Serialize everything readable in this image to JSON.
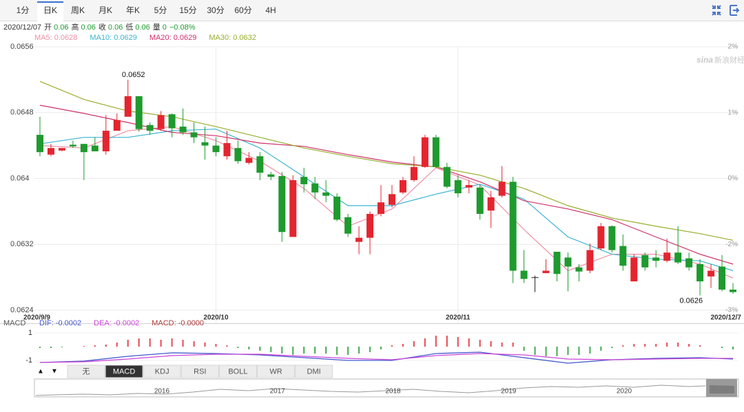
{
  "toolbar": {
    "tabs": [
      "1分",
      "日K",
      "周K",
      "月K",
      "年K",
      "5分",
      "15分",
      "30分",
      "60分",
      "4H"
    ],
    "active_tab": 1
  },
  "info": {
    "date": "2020/12/07",
    "fields": [
      {
        "label": "开",
        "value": "0.06"
      },
      {
        "label": "高",
        "value": "0.06"
      },
      {
        "label": "收",
        "value": "0.06"
      },
      {
        "label": "低",
        "value": "0.06"
      },
      {
        "label": "量",
        "value": "0"
      }
    ],
    "change": "−0.08%"
  },
  "watermark": {
    "logo": "sina",
    "text": "新浪财经"
  },
  "chart_data": [
    {
      "type": "candlestick",
      "categories": [
        "2020/9/9",
        null,
        null,
        null,
        null,
        null,
        null,
        null,
        null,
        null,
        null,
        null,
        null,
        null,
        null,
        null,
        "2020/10",
        null,
        null,
        null,
        null,
        null,
        null,
        null,
        null,
        null,
        null,
        null,
        null,
        null,
        null,
        null,
        null,
        null,
        null,
        null,
        null,
        null,
        "2020/11",
        null,
        null,
        null,
        null,
        null,
        null,
        null,
        null,
        null,
        null,
        null,
        null,
        null,
        null,
        null,
        null,
        null,
        null,
        null,
        null,
        null,
        null,
        null,
        null,
        "2020/12/7"
      ],
      "open": [
        0.06453,
        0.06429,
        0.06434,
        0.06441,
        0.06442,
        0.0644,
        0.06433,
        0.06458,
        0.06475,
        0.065,
        0.06465,
        0.0646,
        0.06478,
        0.06463,
        0.06456,
        0.06444,
        0.0644,
        0.06427,
        0.06437,
        0.06419,
        0.06427,
        0.06405,
        0.06403,
        0.06329,
        0.06402,
        0.06394,
        0.06383,
        0.06378,
        0.06353,
        0.06323,
        0.06328,
        0.06357,
        0.06368,
        0.06383,
        0.06398,
        0.06414,
        0.0645,
        0.06414,
        0.06398,
        0.06389,
        0.06389,
        0.06361,
        0.06379,
        0.06396,
        0.06288,
        0.0628,
        0.06285,
        0.06311,
        0.06304,
        0.06292,
        0.06288,
        0.06315,
        0.06342,
        0.06318,
        0.06275,
        0.06307,
        0.06304,
        0.063,
        0.0631,
        0.06303,
        0.06296,
        0.06281,
        0.06293,
        0.06265
      ],
      "high": [
        0.06475,
        0.06442,
        0.06437,
        0.06446,
        0.06442,
        0.0645,
        0.06477,
        0.06479,
        0.0652,
        0.065,
        0.06468,
        0.06482,
        0.06479,
        0.06485,
        0.06468,
        0.06463,
        0.0645,
        0.06458,
        0.06446,
        0.06432,
        0.06432,
        0.06408,
        0.06408,
        0.06404,
        0.06413,
        0.06402,
        0.06398,
        0.06382,
        0.06357,
        0.06342,
        0.0636,
        0.06392,
        0.06392,
        0.06402,
        0.06427,
        0.06453,
        0.06453,
        0.06419,
        0.06404,
        0.06398,
        0.06392,
        0.06385,
        0.06415,
        0.06402,
        0.06313,
        0.06282,
        0.06302,
        0.06311,
        0.0631,
        0.06296,
        0.06321,
        0.06346,
        0.06343,
        0.06332,
        0.06308,
        0.0631,
        0.06313,
        0.06327,
        0.06342,
        0.0631,
        0.06302,
        0.06296,
        0.06307,
        0.06273
      ],
      "low": [
        0.06427,
        0.06427,
        0.06433,
        0.06437,
        0.06398,
        0.06433,
        0.06429,
        0.06458,
        0.06475,
        0.06457,
        0.06453,
        0.06458,
        0.0645,
        0.06453,
        0.06443,
        0.06423,
        0.06427,
        0.06423,
        0.06418,
        0.06417,
        0.06398,
        0.06398,
        0.06323,
        0.06329,
        0.06383,
        0.06375,
        0.06371,
        0.06348,
        0.06329,
        0.06308,
        0.06308,
        0.06354,
        0.06365,
        0.06381,
        0.06396,
        0.06413,
        0.06413,
        0.06388,
        0.06377,
        0.06382,
        0.0635,
        0.0634,
        0.06377,
        0.06273,
        0.06273,
        0.06262,
        0.06285,
        0.06275,
        0.06263,
        0.06275,
        0.06285,
        0.06313,
        0.0631,
        0.06288,
        0.06275,
        0.06288,
        0.06292,
        0.06298,
        0.06296,
        0.06288,
        0.06258,
        0.06267,
        0.06263,
        0.0626
      ],
      "close": [
        0.06432,
        0.06437,
        0.06437,
        0.06439,
        0.06432,
        0.06433,
        0.06458,
        0.06471,
        0.065,
        0.0646,
        0.06458,
        0.06477,
        0.06461,
        0.06456,
        0.0645,
        0.0644,
        0.06432,
        0.06443,
        0.06421,
        0.06425,
        0.06407,
        0.06402,
        0.06335,
        0.06398,
        0.06393,
        0.06383,
        0.06379,
        0.0635,
        0.06333,
        0.06328,
        0.06357,
        0.06371,
        0.06381,
        0.06398,
        0.06414,
        0.0645,
        0.06414,
        0.0639,
        0.06382,
        0.06392,
        0.06357,
        0.06377,
        0.06396,
        0.06288,
        0.06278,
        0.0628,
        0.06288,
        0.06284,
        0.06293,
        0.06287,
        0.06313,
        0.06342,
        0.06313,
        0.06294,
        0.06304,
        0.06292,
        0.063,
        0.0631,
        0.06298,
        0.06292,
        0.06275,
        0.06288,
        0.06265,
        0.06262
      ],
      "up_color": "#e4252f",
      "down_color": "#1e9a2e",
      "flat_color": "#222222",
      "ma_x": [
        0,
        4,
        8,
        12,
        16,
        20,
        24,
        28,
        32,
        36,
        40,
        44,
        48,
        52,
        56,
        60,
        63
      ],
      "ma": [
        {
          "name": "MA5: 0.0628",
          "color": "#ef8fa4",
          "values": [
            0.0644,
            0.06437,
            0.06458,
            0.06463,
            0.06446,
            0.06421,
            0.06388,
            0.06342,
            0.06363,
            0.06413,
            0.06392,
            0.06338,
            0.06288,
            0.06308,
            0.06308,
            0.06296,
            0.06279
          ]
        },
        {
          "name": "MA10: 0.0629",
          "color": "#3bb3d3",
          "values": [
            0.06442,
            0.0645,
            0.0645,
            0.06458,
            0.0646,
            0.06437,
            0.06402,
            0.06367,
            0.06367,
            0.06381,
            0.06393,
            0.06375,
            0.06329,
            0.06308,
            0.06302,
            0.063,
            0.06288
          ]
        },
        {
          "name": "MA20: 0.0629",
          "color": "#cf2f68",
          "values": [
            0.06489,
            0.06479,
            0.06468,
            0.06456,
            0.06452,
            0.06443,
            0.06439,
            0.06429,
            0.0642,
            0.06414,
            0.06396,
            0.06373,
            0.06363,
            0.0635,
            0.06329,
            0.06308,
            0.06296
          ]
        },
        {
          "name": "MA30: 0.0632",
          "color": "#98ae2e",
          "values": [
            0.06518,
            0.06496,
            0.06482,
            0.06475,
            0.06463,
            0.0645,
            0.06437,
            0.06427,
            0.06418,
            0.06414,
            0.06404,
            0.06388,
            0.06367,
            0.06352,
            0.06342,
            0.06333,
            0.06325
          ]
        }
      ],
      "max_label": "0.0652",
      "min_label": "0.0626",
      "ylim": [
        0.0624,
        0.0656
      ],
      "yticks": [
        0.0656,
        0.0648,
        0.064,
        0.0632,
        0.0624
      ],
      "y2lim": [
        -2.955,
        2.022
      ],
      "y2ticks": [
        {
          "value": 2.022,
          "label": "2%"
        },
        {
          "value": 0.778,
          "label": "1%"
        },
        {
          "value": -0.467,
          "label": "0%"
        },
        {
          "value": -1.711,
          "label": "-2%"
        },
        {
          "value": -2.955,
          "label": "-3%"
        }
      ],
      "grid": true
    },
    {
      "type": "macd",
      "title": "MACD",
      "histogram": {
        "name": "MACD: -0.0000",
        "color": "#b03a3a",
        "up_color": "#e4252f",
        "down_color": "#1e9a2e",
        "values": [
          -0.1,
          -0.1,
          -0.05,
          0,
          0.05,
          0.1,
          0.15,
          0.3,
          0.5,
          0.6,
          0.6,
          0.5,
          0.6,
          0.5,
          0.4,
          0.3,
          0.2,
          0.1,
          -0.1,
          -0.2,
          -0.3,
          -0.4,
          -0.5,
          -0.6,
          -0.5,
          -0.5,
          -0.5,
          -0.6,
          -0.6,
          -0.5,
          -0.4,
          -0.2,
          0.1,
          0.2,
          0.4,
          0.6,
          0.8,
          0.8,
          0.7,
          0.6,
          0.5,
          0.4,
          0.3,
          0.3,
          -0.3,
          -0.6,
          -0.7,
          -0.7,
          -0.6,
          -0.6,
          -0.5,
          -0.3,
          -0.1,
          0.1,
          0.2,
          0.2,
          0.2,
          0.3,
          0.3,
          0.2,
          0.1,
          0,
          -0.1,
          -0.2
        ]
      },
      "x": [
        0,
        4,
        8,
        12,
        16,
        20,
        24,
        28,
        32,
        36,
        40,
        44,
        48,
        52,
        56,
        60,
        63
      ],
      "series": [
        {
          "name": "DIF: -0.0002",
          "color": "#4257cc",
          "values": [
            -1.15,
            -1.05,
            -0.7,
            -0.45,
            -0.5,
            -0.6,
            -0.8,
            -1.0,
            -1.0,
            -0.5,
            -0.4,
            -0.8,
            -1.2,
            -0.95,
            -0.85,
            -0.8,
            -0.9
          ]
        },
        {
          "name": "DEA: -0.0002",
          "color": "#cc44d8",
          "values": [
            -1.15,
            -1.1,
            -0.9,
            -0.65,
            -0.55,
            -0.55,
            -0.7,
            -0.85,
            -0.95,
            -0.65,
            -0.5,
            -0.6,
            -0.9,
            -0.95,
            -0.9,
            -0.85,
            -0.85
          ]
        }
      ],
      "ylim": [
        -1.55,
        1.3
      ],
      "yticks": [
        1,
        -1
      ]
    }
  ],
  "indicators": {
    "buttons": [
      "无",
      "MACD",
      "KDJ",
      "RSI",
      "BOLL",
      "WR",
      "DMI"
    ],
    "active": 1,
    "arrows": [
      "▲",
      "▼"
    ]
  },
  "navigator": {
    "years": [
      "2016",
      "2017",
      "2018",
      "2019",
      "2020"
    ]
  }
}
